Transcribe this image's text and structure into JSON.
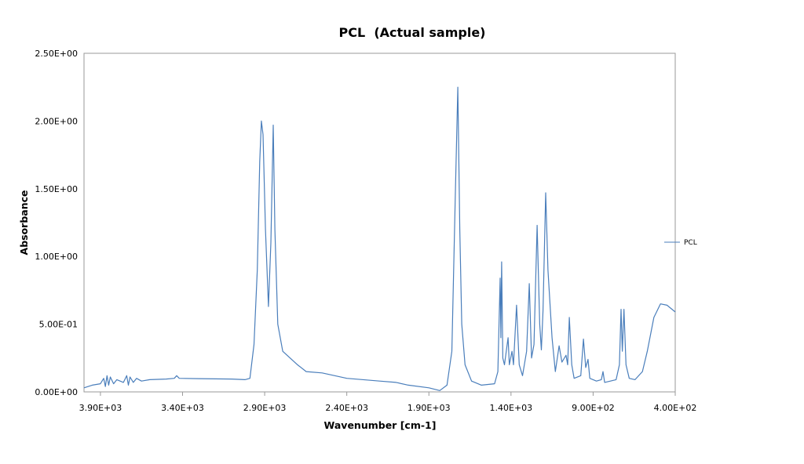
{
  "chart_data": {
    "type": "line",
    "title": "PCL  (Actual sample)",
    "xlabel": "Wavenumber [cm-1]",
    "ylabel": "Absorbance",
    "xlim": [
      4000,
      400
    ],
    "x_reversed": true,
    "ylim": [
      0,
      2.5
    ],
    "xticks": [
      3900,
      3400,
      2900,
      2400,
      1900,
      1400,
      900,
      400
    ],
    "xtick_labels": [
      "3.90E+03",
      "3.40E+03",
      "2.90E+03",
      "2.40E+03",
      "1.90E+03",
      "1.40E+03",
      "9.00E+02",
      "4.00E+02"
    ],
    "yticks": [
      0,
      0.5,
      1.0,
      1.5,
      2.0,
      2.5
    ],
    "ytick_labels": [
      "0.00E+00",
      "5.00E-01",
      "1.00E+00",
      "1.50E+00",
      "2.00E+00",
      "2.50E+00"
    ],
    "grid": false,
    "legend": "right",
    "series": [
      {
        "name": "PCL",
        "color": "#4a7ebb",
        "points": [
          [
            4000,
            0.03
          ],
          [
            3950,
            0.05
          ],
          [
            3900,
            0.06
          ],
          [
            3880,
            0.1
          ],
          [
            3870,
            0.04
          ],
          [
            3860,
            0.12
          ],
          [
            3850,
            0.05
          ],
          [
            3840,
            0.11
          ],
          [
            3820,
            0.06
          ],
          [
            3800,
            0.09
          ],
          [
            3760,
            0.07
          ],
          [
            3740,
            0.12
          ],
          [
            3730,
            0.05
          ],
          [
            3720,
            0.11
          ],
          [
            3700,
            0.07
          ],
          [
            3680,
            0.1
          ],
          [
            3650,
            0.08
          ],
          [
            3600,
            0.09
          ],
          [
            3500,
            0.095
          ],
          [
            3450,
            0.1
          ],
          [
            3436,
            0.12
          ],
          [
            3420,
            0.1
          ],
          [
            3300,
            0.098
          ],
          [
            3100,
            0.095
          ],
          [
            3020,
            0.09
          ],
          [
            2990,
            0.1
          ],
          [
            2965,
            0.35
          ],
          [
            2945,
            0.9
          ],
          [
            2930,
            1.7
          ],
          [
            2920,
            2.0
          ],
          [
            2910,
            1.9
          ],
          [
            2895,
            1.2
          ],
          [
            2877,
            0.63
          ],
          [
            2862,
            1.1
          ],
          [
            2848,
            1.97
          ],
          [
            2838,
            1.2
          ],
          [
            2820,
            0.5
          ],
          [
            2790,
            0.3
          ],
          [
            2700,
            0.2
          ],
          [
            2647,
            0.15
          ],
          [
            2550,
            0.14
          ],
          [
            2400,
            0.1
          ],
          [
            2200,
            0.08
          ],
          [
            2100,
            0.07
          ],
          [
            2025,
            0.05
          ],
          [
            1900,
            0.03
          ],
          [
            1834,
            0.01
          ],
          [
            1790,
            0.05
          ],
          [
            1760,
            0.3
          ],
          [
            1740,
            1.4
          ],
          [
            1724,
            2.25
          ],
          [
            1712,
            1.2
          ],
          [
            1700,
            0.5
          ],
          [
            1680,
            0.2
          ],
          [
            1640,
            0.08
          ],
          [
            1580,
            0.05
          ],
          [
            1500,
            0.06
          ],
          [
            1480,
            0.15
          ],
          [
            1466,
            0.84
          ],
          [
            1462,
            0.4
          ],
          [
            1457,
            0.96
          ],
          [
            1450,
            0.25
          ],
          [
            1440,
            0.2
          ],
          [
            1418,
            0.4
          ],
          [
            1410,
            0.2
          ],
          [
            1394,
            0.3
          ],
          [
            1385,
            0.2
          ],
          [
            1366,
            0.64
          ],
          [
            1350,
            0.2
          ],
          [
            1330,
            0.12
          ],
          [
            1305,
            0.3
          ],
          [
            1289,
            0.8
          ],
          [
            1275,
            0.25
          ],
          [
            1260,
            0.35
          ],
          [
            1241,
            1.23
          ],
          [
            1225,
            0.5
          ],
          [
            1215,
            0.31
          ],
          [
            1205,
            0.6
          ],
          [
            1189,
            1.47
          ],
          [
            1175,
            0.9
          ],
          [
            1150,
            0.4
          ],
          [
            1130,
            0.15
          ],
          [
            1107,
            0.34
          ],
          [
            1090,
            0.22
          ],
          [
            1065,
            0.27
          ],
          [
            1055,
            0.2
          ],
          [
            1045,
            0.55
          ],
          [
            1030,
            0.2
          ],
          [
            1016,
            0.1
          ],
          [
            975,
            0.12
          ],
          [
            959,
            0.39
          ],
          [
            945,
            0.18
          ],
          [
            931,
            0.24
          ],
          [
            920,
            0.1
          ],
          [
            880,
            0.08
          ],
          [
            850,
            0.09
          ],
          [
            840,
            0.15
          ],
          [
            830,
            0.07
          ],
          [
            760,
            0.09
          ],
          [
            740,
            0.2
          ],
          [
            730,
            0.61
          ],
          [
            722,
            0.3
          ],
          [
            712,
            0.61
          ],
          [
            700,
            0.2
          ],
          [
            680,
            0.1
          ],
          [
            645,
            0.09
          ],
          [
            600,
            0.15
          ],
          [
            570,
            0.3
          ],
          [
            530,
            0.55
          ],
          [
            490,
            0.65
          ],
          [
            450,
            0.64
          ],
          [
            400,
            0.59
          ]
        ]
      }
    ]
  }
}
